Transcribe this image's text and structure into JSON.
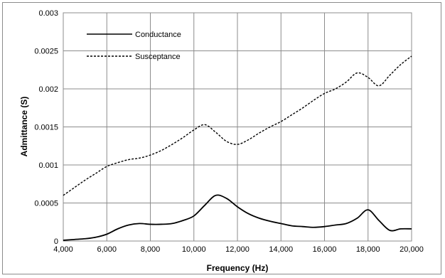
{
  "chart_data": {
    "type": "line",
    "title": "",
    "xlabel": "Frequency (Hz)",
    "ylabel": "Admittance (S)",
    "xlim": [
      4000,
      20000
    ],
    "ylim": [
      0,
      0.003
    ],
    "grid": true,
    "legend_position": "top-left",
    "x_ticks": [
      4000,
      6000,
      8000,
      10000,
      12000,
      14000,
      16000,
      18000,
      20000
    ],
    "x_tick_labels": [
      "4,000",
      "6,000",
      "8,000",
      "10,000",
      "12,000",
      "14,000",
      "16,000",
      "18,000",
      "20,000"
    ],
    "y_ticks": [
      0,
      0.0005,
      0.001,
      0.0015,
      0.002,
      0.0025,
      0.003
    ],
    "y_tick_labels": [
      "0",
      "0.0005",
      "0.001",
      "0.0015",
      "0.002",
      "0.0025",
      "0.003"
    ],
    "series": [
      {
        "name": "Conductance",
        "style": "solid",
        "color": "#000000",
        "x": [
          4000,
          4500,
          5000,
          5500,
          6000,
          6500,
          7000,
          7500,
          8000,
          8500,
          9000,
          9500,
          10000,
          10500,
          11000,
          11500,
          12000,
          12500,
          13000,
          13500,
          14000,
          14500,
          15000,
          15500,
          16000,
          16500,
          17000,
          17500,
          18000,
          18500,
          19000,
          19500,
          20000
        ],
        "y": [
          1e-05,
          2e-05,
          3e-05,
          5e-05,
          9e-05,
          0.00016,
          0.00021,
          0.00023,
          0.00022,
          0.00022,
          0.00023,
          0.00027,
          0.00033,
          0.00047,
          0.0006,
          0.00056,
          0.00045,
          0.00036,
          0.0003,
          0.00026,
          0.00023,
          0.0002,
          0.00019,
          0.00018,
          0.00019,
          0.00021,
          0.00023,
          0.0003,
          0.00041,
          0.00027,
          0.00014,
          0.00016,
          0.00016
        ]
      },
      {
        "name": "Susceptance",
        "style": "dashed",
        "color": "#000000",
        "x": [
          4000,
          4500,
          5000,
          5500,
          6000,
          6500,
          7000,
          7500,
          8000,
          8500,
          9000,
          9500,
          10000,
          10500,
          11000,
          11500,
          12000,
          12500,
          13000,
          13500,
          14000,
          14500,
          15000,
          15500,
          16000,
          16500,
          17000,
          17500,
          18000,
          18500,
          19000,
          19500,
          20000
        ],
        "y": [
          0.0006,
          0.0007,
          0.0008,
          0.00089,
          0.00098,
          0.00103,
          0.00107,
          0.00109,
          0.00113,
          0.00119,
          0.00127,
          0.00136,
          0.00146,
          0.00153,
          0.00143,
          0.00131,
          0.00127,
          0.00133,
          0.00142,
          0.0015,
          0.00157,
          0.00166,
          0.00175,
          0.00185,
          0.00194,
          0.002,
          0.00209,
          0.00221,
          0.00215,
          0.00204,
          0.00218,
          0.00232,
          0.00243
        ]
      }
    ]
  }
}
